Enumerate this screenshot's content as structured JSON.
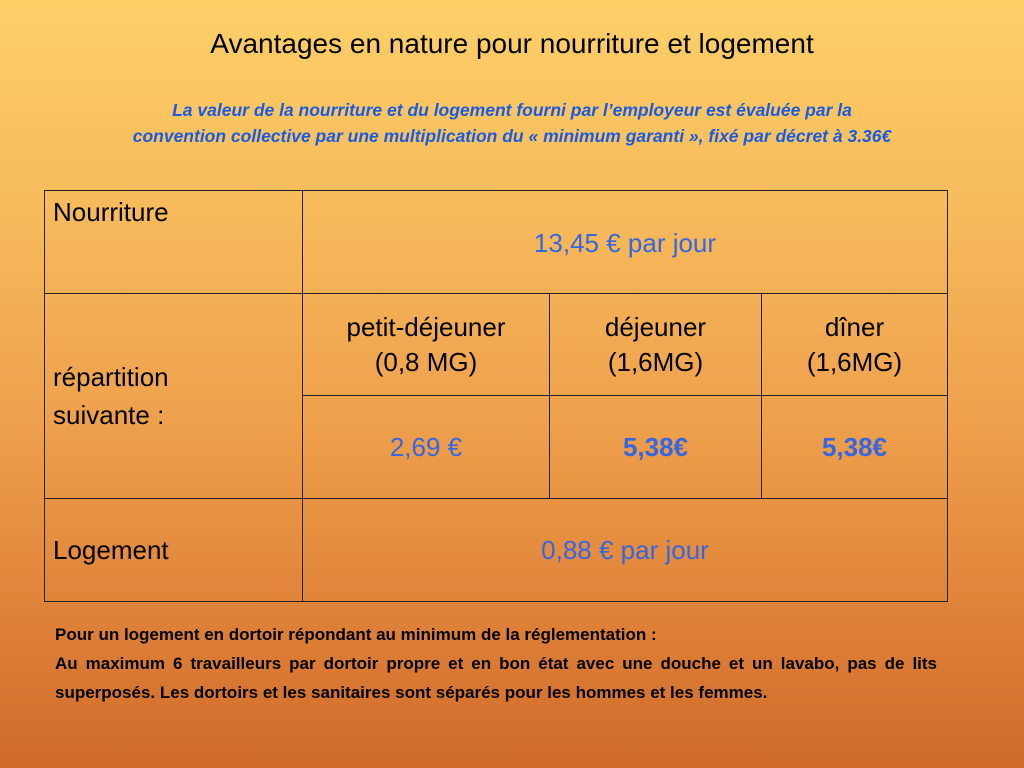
{
  "title": "Avantages en nature pour nourriture et logement",
  "subtitle": {
    "line1": "La valeur de la nourriture et du logement fourni par l’employeur est évaluée par la",
    "line2": "convention collective par une multiplication du « minimum garanti », fixé par décret à 3.36€"
  },
  "table": {
    "food": {
      "label": "Nourriture",
      "value": "13,45 €  par jour"
    },
    "breakdown": {
      "label_line1": "répartition",
      "label_line2": "suivante :",
      "meals": [
        {
          "name": "petit-déjeuner",
          "coef": "(0,8 MG)",
          "amount": "2,69 €"
        },
        {
          "name": "déjeuner",
          "coef": "(1,6MG)",
          "amount": "5,38€"
        },
        {
          "name": "dîner",
          "coef": "(1,6MG)",
          "amount": "5,38€"
        }
      ]
    },
    "lodging": {
      "label": "Logement",
      "value": "0,88 € par jour"
    }
  },
  "note": {
    "heading": "Pour un logement en dortoir répondant au minimum de la réglementation :",
    "body": "Au maximum 6 travailleurs par dortoir propre et en bon état avec une douche et un lavabo, pas de lits superposés. Les dortoirs et les sanitaires sont séparés pour les hommes et les femmes."
  },
  "colors": {
    "accent_blue": "#3567e0",
    "subtitle_blue": "#1a5be0",
    "background_top": "#fdd068",
    "background_bottom": "#cf6a2a"
  }
}
